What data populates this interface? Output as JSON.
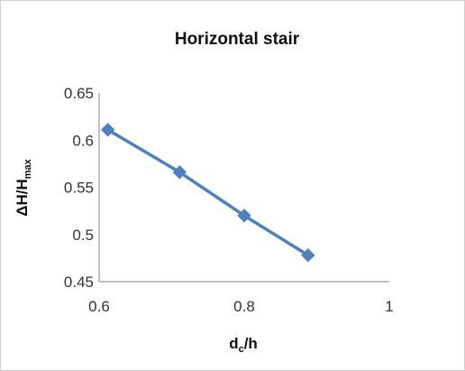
{
  "chart_data": {
    "type": "scatter",
    "title": "Horizontal stair",
    "xlabel": {
      "base": "d",
      "sub": "c",
      "rest": "/h"
    },
    "ylabel": {
      "base": "ΔH/H",
      "sub": "max"
    },
    "xlim": [
      0.6,
      1.0
    ],
    "ylim": [
      0.45,
      0.65
    ],
    "xticks": [
      0.6,
      0.8,
      1.0
    ],
    "xtick_labels": [
      "0.6",
      "0.8",
      "1"
    ],
    "yticks": [
      0.45,
      0.5,
      0.55,
      0.6,
      0.65
    ],
    "ytick_labels": [
      "0.45",
      "0.5",
      "0.55",
      "0.6",
      "0.65"
    ],
    "grid": false,
    "legend": "none",
    "series": [
      {
        "x": [
          0.612,
          0.711,
          0.8,
          0.888
        ],
        "y": [
          0.611,
          0.566,
          0.52,
          0.478
        ],
        "color": "#4f81bd",
        "marker": "diamond",
        "line": "straight"
      }
    ]
  }
}
